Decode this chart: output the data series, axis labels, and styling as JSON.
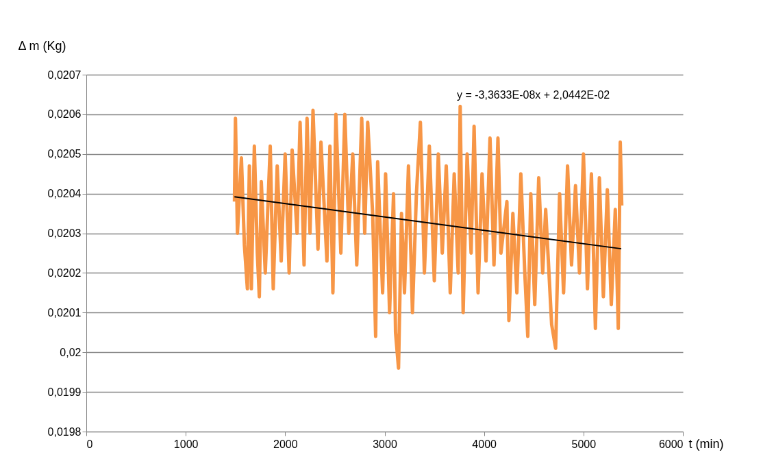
{
  "chart_data": {
    "type": "line",
    "xlabel": "t (min)",
    "ylabel": "Δ m (Kg)",
    "annotations": [
      "y = -3,3633E-08x + 2,0442E-02"
    ],
    "xlim": [
      0,
      6000
    ],
    "xticks": [
      0,
      1000,
      2000,
      3000,
      4000,
      5000,
      6000
    ],
    "ylim": [
      0.0198,
      0.0207
    ],
    "yticks": [
      {
        "value": 0.0198,
        "label": "0,0198"
      },
      {
        "value": 0.0199,
        "label": "0,0199"
      },
      {
        "value": 0.02,
        "label": "0,02"
      },
      {
        "value": 0.0201,
        "label": "0,0201"
      },
      {
        "value": 0.0202,
        "label": "0,0202"
      },
      {
        "value": 0.0203,
        "label": "0,0203"
      },
      {
        "value": 0.0204,
        "label": "0,0204"
      },
      {
        "value": 0.0205,
        "label": "0,0205"
      },
      {
        "value": 0.0206,
        "label": "0,0206"
      },
      {
        "value": 0.0207,
        "label": "0,0207"
      }
    ],
    "grid": "y",
    "marker": "none",
    "line_style": "solid",
    "series": [
      {
        "color": "#f79646",
        "x": [
          1490,
          1500,
          1520,
          1560,
          1590,
          1620,
          1640,
          1660,
          1690,
          1720,
          1740,
          1760,
          1800,
          1850,
          1880,
          1920,
          1960,
          2000,
          2040,
          2070,
          2120,
          2150,
          2190,
          2220,
          2250,
          2280,
          2330,
          2360,
          2420,
          2450,
          2480,
          2510,
          2560,
          2600,
          2640,
          2680,
          2720,
          2770,
          2800,
          2830,
          2880,
          2910,
          2930,
          2980,
          3010,
          3050,
          3090,
          3110,
          3140,
          3170,
          3200,
          3240,
          3280,
          3320,
          3360,
          3400,
          3450,
          3500,
          3540,
          3580,
          3620,
          3660,
          3700,
          3740,
          3760,
          3790,
          3830,
          3870,
          3900,
          3940,
          3980,
          4020,
          4060,
          4100,
          4140,
          4170,
          4230,
          4250,
          4290,
          4330,
          4370,
          4410,
          4440,
          4470,
          4510,
          4550,
          4590,
          4620,
          4680,
          4720,
          4760,
          4800,
          4840,
          4880,
          4920,
          4960,
          5000,
          5040,
          5080,
          5120,
          5160,
          5200,
          5240,
          5280,
          5320,
          5350,
          5370,
          5385
        ],
        "values": [
          0.02038,
          0.02059,
          0.0203,
          0.02049,
          0.02027,
          0.02016,
          0.02047,
          0.02016,
          0.02052,
          0.02025,
          0.02014,
          0.02043,
          0.0202,
          0.02052,
          0.02016,
          0.02047,
          0.02023,
          0.0205,
          0.0202,
          0.02051,
          0.0203,
          0.02058,
          0.02022,
          0.02059,
          0.0203,
          0.02061,
          0.02026,
          0.02053,
          0.02023,
          0.02052,
          0.02015,
          0.0206,
          0.02025,
          0.0206,
          0.0203,
          0.0205,
          0.02022,
          0.02059,
          0.0203,
          0.02058,
          0.02035,
          0.02004,
          0.02048,
          0.02015,
          0.02045,
          0.0201,
          0.0204,
          0.02005,
          0.01996,
          0.02035,
          0.02015,
          0.02047,
          0.0201,
          0.0204,
          0.02058,
          0.0202,
          0.02052,
          0.02018,
          0.0205,
          0.02025,
          0.02047,
          0.02015,
          0.02045,
          0.0202,
          0.02062,
          0.0201,
          0.0205,
          0.02025,
          0.02057,
          0.02015,
          0.02045,
          0.02023,
          0.02054,
          0.02022,
          0.02054,
          0.02025,
          0.02038,
          0.02008,
          0.02035,
          0.02015,
          0.02045,
          0.0202,
          0.02004,
          0.0204,
          0.02012,
          0.02044,
          0.0202,
          0.02036,
          0.02007,
          0.02001,
          0.0204,
          0.02015,
          0.02047,
          0.02022,
          0.02042,
          0.0202,
          0.0205,
          0.02016,
          0.02045,
          0.02006,
          0.02044,
          0.02014,
          0.02041,
          0.02012,
          0.02036,
          0.02006,
          0.02053,
          0.02037
        ]
      },
      {
        "type": "line",
        "color": "#000000",
        "x": [
          1490,
          5380
        ],
        "values": [
          0.020392,
          0.020261
        ]
      }
    ]
  }
}
